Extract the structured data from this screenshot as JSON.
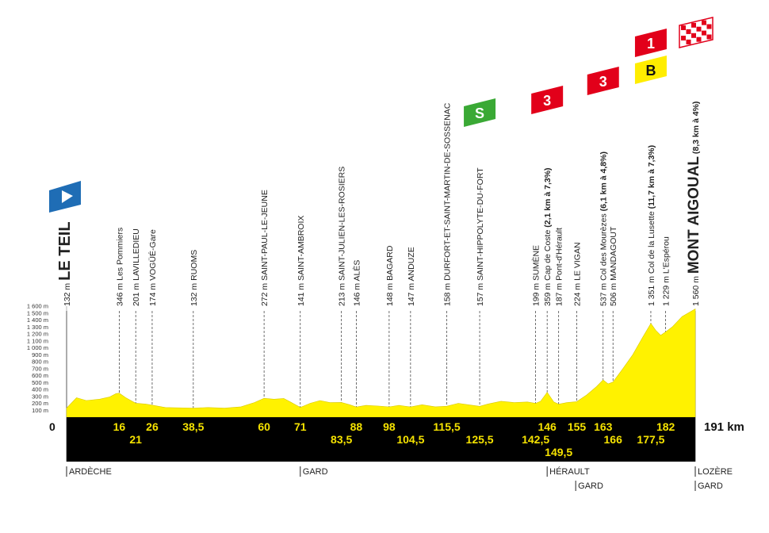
{
  "chart_data": {
    "type": "area",
    "start_km_label": "0",
    "end_km_label": "191 km",
    "ylim": [
      0,
      1600
    ],
    "xlim": [
      0,
      191
    ],
    "y_ticks": [
      "100 m",
      "200 m",
      "300 m",
      "400 m",
      "500 m",
      "600 m",
      "700 m",
      "800 m",
      "900 m",
      "1 000 m",
      "1 100 m",
      "1 200 m",
      "1 300 m",
      "1 400 m",
      "1 500 m",
      "1 600 m"
    ],
    "profile": [
      {
        "x": 0,
        "y": 132
      },
      {
        "x": 3,
        "y": 280
      },
      {
        "x": 6,
        "y": 240
      },
      {
        "x": 10,
        "y": 260
      },
      {
        "x": 13,
        "y": 290
      },
      {
        "x": 15,
        "y": 340
      },
      {
        "x": 16,
        "y": 346
      },
      {
        "x": 18,
        "y": 280
      },
      {
        "x": 21,
        "y": 201
      },
      {
        "x": 24,
        "y": 190
      },
      {
        "x": 26,
        "y": 174
      },
      {
        "x": 30,
        "y": 140
      },
      {
        "x": 34,
        "y": 135
      },
      {
        "x": 38.5,
        "y": 132
      },
      {
        "x": 43,
        "y": 140
      },
      {
        "x": 48,
        "y": 130
      },
      {
        "x": 53,
        "y": 150
      },
      {
        "x": 57,
        "y": 210
      },
      {
        "x": 60,
        "y": 272
      },
      {
        "x": 63,
        "y": 260
      },
      {
        "x": 66,
        "y": 270
      },
      {
        "x": 68,
        "y": 220
      },
      {
        "x": 71,
        "y": 141
      },
      {
        "x": 74,
        "y": 200
      },
      {
        "x": 77,
        "y": 240
      },
      {
        "x": 80,
        "y": 210
      },
      {
        "x": 83.5,
        "y": 213
      },
      {
        "x": 86,
        "y": 180
      },
      {
        "x": 88,
        "y": 146
      },
      {
        "x": 91,
        "y": 170
      },
      {
        "x": 95,
        "y": 160
      },
      {
        "x": 98,
        "y": 148
      },
      {
        "x": 101,
        "y": 170
      },
      {
        "x": 104.5,
        "y": 147
      },
      {
        "x": 108,
        "y": 180
      },
      {
        "x": 112,
        "y": 150
      },
      {
        "x": 115.5,
        "y": 158
      },
      {
        "x": 119,
        "y": 200
      },
      {
        "x": 122,
        "y": 180
      },
      {
        "x": 125.5,
        "y": 157
      },
      {
        "x": 128,
        "y": 190
      },
      {
        "x": 132,
        "y": 230
      },
      {
        "x": 136,
        "y": 210
      },
      {
        "x": 140,
        "y": 220
      },
      {
        "x": 142.5,
        "y": 199
      },
      {
        "x": 144,
        "y": 230
      },
      {
        "x": 146,
        "y": 359
      },
      {
        "x": 148,
        "y": 220
      },
      {
        "x": 149.5,
        "y": 187
      },
      {
        "x": 152,
        "y": 210
      },
      {
        "x": 155,
        "y": 224
      },
      {
        "x": 158,
        "y": 320
      },
      {
        "x": 161,
        "y": 440
      },
      {
        "x": 163,
        "y": 537
      },
      {
        "x": 164.5,
        "y": 480
      },
      {
        "x": 166,
        "y": 506
      },
      {
        "x": 169,
        "y": 700
      },
      {
        "x": 172,
        "y": 900
      },
      {
        "x": 175,
        "y": 1150
      },
      {
        "x": 177.5,
        "y": 1351
      },
      {
        "x": 179,
        "y": 1250
      },
      {
        "x": 180.5,
        "y": 1180
      },
      {
        "x": 182,
        "y": 1229
      },
      {
        "x": 184,
        "y": 1300
      },
      {
        "x": 187,
        "y": 1450
      },
      {
        "x": 191,
        "y": 1560
      }
    ],
    "waypoints": [
      {
        "km": 0,
        "km_label": "",
        "alt": "132 m",
        "name": "LE TEIL",
        "detail": "",
        "style": "start"
      },
      {
        "km": 16,
        "km_label": "16",
        "alt": "346 m",
        "name": "Les Pommiers",
        "detail": "",
        "style": "normal"
      },
      {
        "km": 21,
        "km_label": "21",
        "alt": "201 m",
        "name": "LAVILLEDIEU",
        "detail": "",
        "style": "normal"
      },
      {
        "km": 26,
        "km_label": "26",
        "alt": "174 m",
        "name": "VOGÜÉ-Gare",
        "detail": "",
        "style": "normal"
      },
      {
        "km": 38.5,
        "km_label": "38,5",
        "alt": "132 m",
        "name": "RUOMS",
        "detail": "",
        "style": "normal"
      },
      {
        "km": 60,
        "km_label": "60",
        "alt": "272 m",
        "name": "SAINT-PAUL-LE-JEUNE",
        "detail": "",
        "style": "normal"
      },
      {
        "km": 71,
        "km_label": "71",
        "alt": "141 m",
        "name": "SAINT-AMBROIX",
        "detail": "",
        "style": "normal"
      },
      {
        "km": 83.5,
        "km_label": "83,5",
        "alt": "213 m",
        "name": "SAINT-JULIEN-LES-ROSIERS",
        "detail": "",
        "style": "normal"
      },
      {
        "km": 88,
        "km_label": "88",
        "alt": "146 m",
        "name": "ALÈS",
        "detail": "",
        "style": "normal"
      },
      {
        "km": 98,
        "km_label": "98",
        "alt": "148 m",
        "name": "BAGARD",
        "detail": "",
        "style": "normal"
      },
      {
        "km": 104.5,
        "km_label": "104,5",
        "alt": "147 m",
        "name": "ANDUZE",
        "detail": "",
        "style": "normal"
      },
      {
        "km": 115.5,
        "km_label": "115,5",
        "alt": "158 m",
        "name": "DURFORT-ET-SAINT-MARTIN-DE-SOSSENAC",
        "detail": "",
        "style": "normal"
      },
      {
        "km": 125.5,
        "km_label": "125,5",
        "alt": "157 m",
        "name": "SAINT-HIPPOLYTE-DU-FORT",
        "detail": "",
        "style": "normal"
      },
      {
        "km": 142.5,
        "km_label": "142,5",
        "alt": "199 m",
        "name": "SUMÈNE",
        "detail": "",
        "style": "normal"
      },
      {
        "km": 146,
        "km_label": "146",
        "alt": "359 m",
        "name": "Cap de Coste",
        "detail": "(2,1 km à 7,3%)",
        "style": "normal"
      },
      {
        "km": 149.5,
        "km_label": "149,5",
        "alt": "187 m",
        "name": "Pont-d'Hérault",
        "detail": "",
        "style": "normal"
      },
      {
        "km": 155,
        "km_label": "155",
        "alt": "224 m",
        "name": "LE VIGAN",
        "detail": "",
        "style": "normal"
      },
      {
        "km": 163,
        "km_label": "163",
        "alt": "537 m",
        "name": "Col des Mourèzes",
        "detail": "(6,1 km à 4,8%)",
        "style": "normal"
      },
      {
        "km": 166,
        "km_label": "166",
        "alt": "506 m",
        "name": "MANDAGOUT",
        "detail": "",
        "style": "normal"
      },
      {
        "km": 177.5,
        "km_label": "177,5",
        "alt": "1 351 m",
        "name": "Col de la Lusette",
        "detail": "(11,7 km à 7,3%)",
        "style": "normal"
      },
      {
        "km": 182,
        "km_label": "182",
        "alt": "1 229 m",
        "name": "L'Espérou",
        "detail": "",
        "style": "normal"
      },
      {
        "km": 191,
        "km_label": "",
        "alt": "1 560 m",
        "name": "MONT AIGOUAL",
        "detail": "(8,3 km à 4%)",
        "style": "finish"
      }
    ],
    "markers": [
      {
        "km": 0,
        "type": "start-flag",
        "label": ""
      },
      {
        "km": 125.5,
        "type": "sprint",
        "label": "S"
      },
      {
        "km": 146,
        "type": "climb-cat",
        "label": "3"
      },
      {
        "km": 163,
        "type": "climb-cat",
        "label": "3"
      },
      {
        "km": 177.5,
        "type": "climb-cat",
        "label": "1"
      },
      {
        "km": 177.5,
        "type": "bonus",
        "label": "B"
      },
      {
        "km": 191,
        "type": "finish-flag",
        "label": ""
      }
    ],
    "regions": [
      {
        "km": 0,
        "lines": [
          "ARDÈCHE"
        ]
      },
      {
        "km": 71,
        "lines": [
          "GARD"
        ]
      },
      {
        "km": 146,
        "lines": [
          "HÉRAULT",
          "GARD"
        ]
      },
      {
        "km": 191,
        "lines": [
          "LOZÈRE",
          "GARD"
        ]
      }
    ],
    "colors": {
      "profile": "#fff200",
      "band": "#000000",
      "km_text": "#f5e200",
      "sprint": "#3aa935",
      "climb": "#e2001a",
      "bonus": "#ffed00",
      "start": "#1f6db5"
    }
  }
}
